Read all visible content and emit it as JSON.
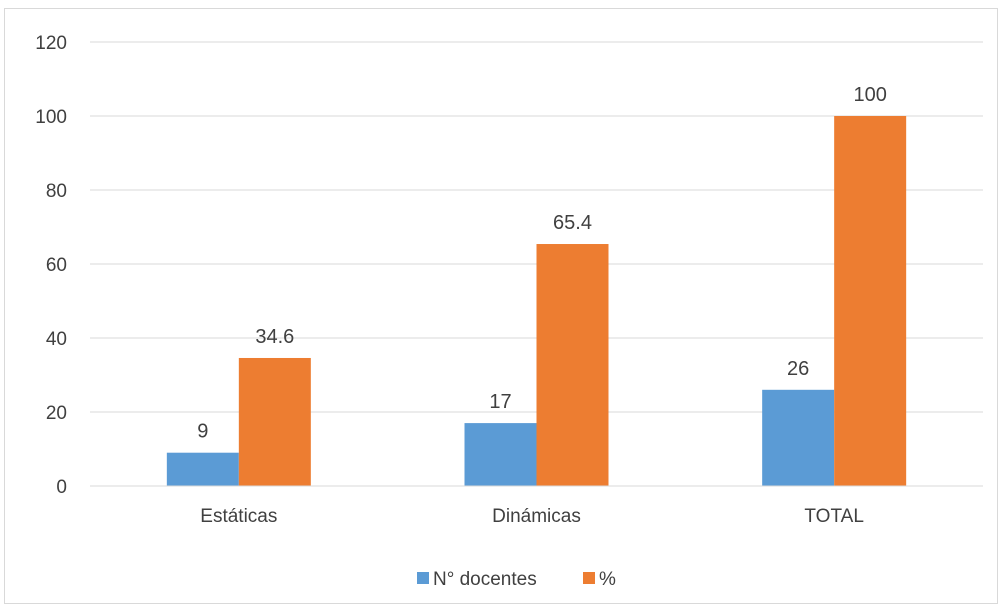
{
  "chart_data": {
    "type": "bar",
    "categories": [
      "Estáticas",
      "Dinámicas",
      "TOTAL"
    ],
    "series": [
      {
        "name": "N° docentes",
        "values": [
          9,
          17,
          26
        ],
        "color": "#5b9bd5"
      },
      {
        "name": "%",
        "values": [
          34.6,
          65.4,
          100
        ],
        "color": "#ed7d31"
      }
    ],
    "data_labels": [
      [
        "9",
        "17",
        "26"
      ],
      [
        "34.6",
        "65.4",
        "100"
      ]
    ],
    "y_ticks": [
      0,
      20,
      40,
      60,
      80,
      100,
      120
    ],
    "ylim": [
      0,
      120
    ],
    "grid": true,
    "legend_position": "bottom",
    "gridline_color": "#d9d9d9",
    "text_color": "#404040"
  }
}
